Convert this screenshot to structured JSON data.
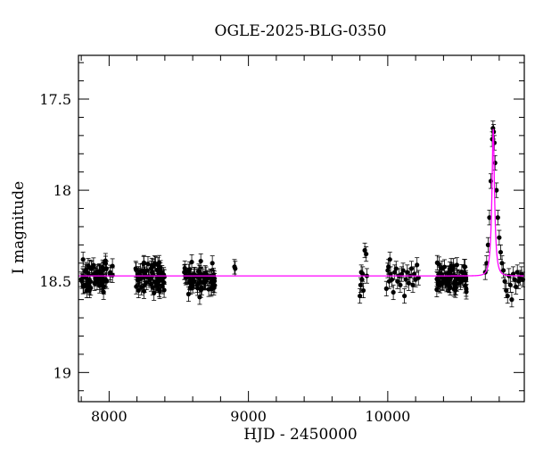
{
  "chart_data": {
    "type": "scatter",
    "title": "OGLE-2025-BLG-0350",
    "xlabel": "HJD - 2450000",
    "ylabel": "I magnitude",
    "xlim": [
      7780,
      10980
    ],
    "ylim": [
      19.16,
      17.26
    ],
    "y_inverted": true,
    "xticks": [
      8000,
      9000,
      10000
    ],
    "xtick_labels": [
      "8000",
      "9000",
      "10000"
    ],
    "yticks": [
      17.5,
      18,
      18.5,
      19
    ],
    "ytick_labels": [
      "17.5",
      "18",
      "18.5",
      "19"
    ],
    "grid": false,
    "legend": "none",
    "colors": {
      "points": "#000000",
      "model": "#ff00ff"
    },
    "series": [
      {
        "type": "scatter",
        "seasons": [
          {
            "x_start": 7790,
            "x_end": 8030,
            "mean": 18.47,
            "scatter": 0.04
          },
          {
            "x_start": 8190,
            "x_end": 8400,
            "mean": 18.48,
            "scatter": 0.04
          },
          {
            "x_start": 8540,
            "x_end": 8760,
            "mean": 18.49,
            "scatter": 0.04
          },
          {
            "x_start": 10350,
            "x_end": 10570,
            "mean": 18.48,
            "scatter": 0.04
          }
        ],
        "points": [
          [
            8900,
            18.42
          ],
          [
            8905,
            18.43
          ],
          [
            9800,
            18.58
          ],
          [
            9805,
            18.52
          ],
          [
            9810,
            18.45
          ],
          [
            9815,
            18.49
          ],
          [
            9820,
            18.46
          ],
          [
            9825,
            18.55
          ],
          [
            9835,
            18.33
          ],
          [
            9845,
            18.35
          ],
          [
            9850,
            18.47
          ],
          [
            9990,
            18.54
          ],
          [
            10000,
            18.44
          ],
          [
            10005,
            18.42
          ],
          [
            10010,
            18.5
          ],
          [
            10015,
            18.38
          ],
          [
            10020,
            18.46
          ],
          [
            10030,
            18.49
          ],
          [
            10040,
            18.56
          ],
          [
            10050,
            18.45
          ],
          [
            10060,
            18.43
          ],
          [
            10070,
            18.5
          ],
          [
            10080,
            18.47
          ],
          [
            10090,
            18.52
          ],
          [
            10100,
            18.46
          ],
          [
            10110,
            18.44
          ],
          [
            10120,
            18.58
          ],
          [
            10130,
            18.49
          ],
          [
            10140,
            18.45
          ],
          [
            10150,
            18.51
          ],
          [
            10160,
            18.47
          ],
          [
            10170,
            18.43
          ],
          [
            10180,
            18.52
          ],
          [
            10190,
            18.46
          ],
          [
            10200,
            18.49
          ],
          [
            10210,
            18.41
          ],
          [
            10220,
            18.48
          ],
          [
            10700,
            18.45
          ],
          [
            10710,
            18.4
          ],
          [
            10720,
            18.3
          ],
          [
            10730,
            18.15
          ],
          [
            10740,
            17.95
          ],
          [
            10750,
            17.72
          ],
          [
            10755,
            17.66
          ],
          [
            10760,
            17.68
          ],
          [
            10765,
            17.74
          ],
          [
            10770,
            17.85
          ],
          [
            10780,
            18.0
          ],
          [
            10790,
            18.15
          ],
          [
            10800,
            18.26
          ],
          [
            10810,
            18.34
          ],
          [
            10820,
            18.4
          ],
          [
            10830,
            18.44
          ],
          [
            10840,
            18.5
          ],
          [
            10850,
            18.55
          ],
          [
            10860,
            18.58
          ],
          [
            10870,
            18.47
          ],
          [
            10880,
            18.52
          ],
          [
            10890,
            18.6
          ],
          [
            10900,
            18.46
          ],
          [
            10910,
            18.49
          ],
          [
            10920,
            18.53
          ],
          [
            10930,
            18.45
          ],
          [
            10940,
            18.5
          ],
          [
            10950,
            18.48
          ],
          [
            10960,
            18.46
          ],
          [
            10970,
            18.49
          ]
        ]
      },
      {
        "type": "line",
        "model": {
          "baseline": 18.47,
          "peak": 17.66,
          "t0": 10757,
          "tE": 28,
          "u0": 0.3
        }
      }
    ]
  }
}
